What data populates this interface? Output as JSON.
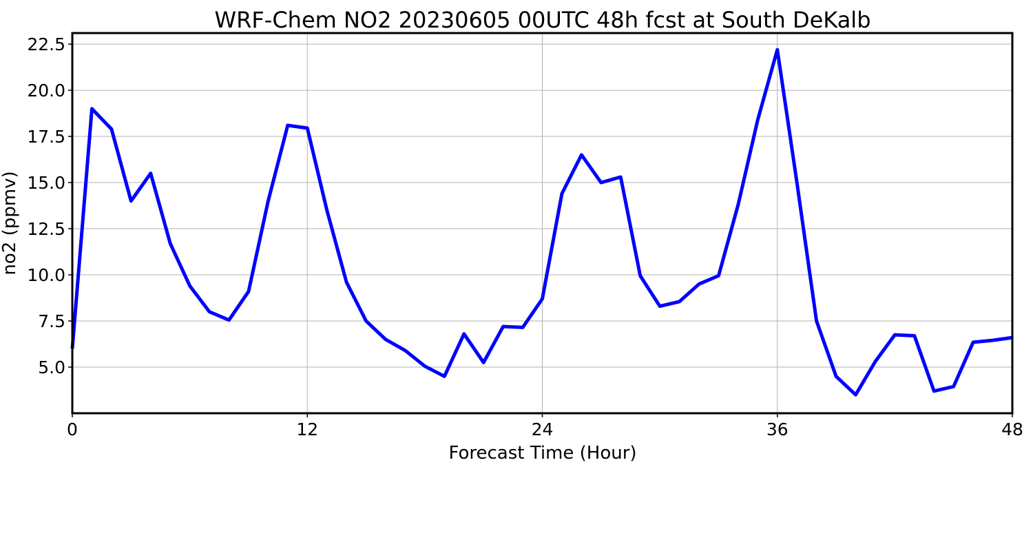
{
  "chart_data": {
    "type": "line",
    "title": "WRF-Chem NO2  20230605 00UTC 48h fcst at South DeKalb",
    "xlabel": "Forecast Time (Hour)",
    "ylabel": "no2  (ppmv)",
    "xlim": [
      0,
      48
    ],
    "ylim": [
      2.5,
      23.1
    ],
    "xticks": [
      0,
      12,
      24,
      36,
      48
    ],
    "yticks": [
      5.0,
      7.5,
      10.0,
      12.5,
      15.0,
      17.5,
      20.0,
      22.5
    ],
    "xtick_labels": [
      "0",
      "12",
      "24",
      "36",
      "48"
    ],
    "ytick_labels": [
      "5.0",
      "7.5",
      "10.0",
      "12.5",
      "15.0",
      "17.5",
      "20.0",
      "22.5"
    ],
    "grid": true,
    "line_color": "#0000ff",
    "x": [
      0,
      1,
      2,
      3,
      4,
      5,
      6,
      7,
      8,
      9,
      10,
      11,
      12,
      13,
      14,
      15,
      16,
      17,
      18,
      19,
      20,
      21,
      22,
      23,
      24,
      25,
      26,
      27,
      28,
      29,
      30,
      31,
      32,
      33,
      34,
      35,
      36,
      37,
      38,
      39,
      40,
      41,
      42,
      43,
      44,
      45,
      46,
      47,
      48
    ],
    "series": [
      {
        "values": [
          6.0,
          19.0,
          17.9,
          14.0,
          15.5,
          11.7,
          9.4,
          8.0,
          7.55,
          9.1,
          14.0,
          18.1,
          17.95,
          13.5,
          9.6,
          7.5,
          6.5,
          5.9,
          5.05,
          4.5,
          6.8,
          5.25,
          7.2,
          7.15,
          8.7,
          14.4,
          16.5,
          15.0,
          15.3,
          9.95,
          8.3,
          8.55,
          9.5,
          9.95,
          13.8,
          18.4,
          22.2,
          15.0,
          7.5,
          4.5,
          3.5,
          5.3,
          6.75,
          6.7,
          3.7,
          3.95,
          6.35,
          6.45,
          6.6
        ]
      }
    ]
  }
}
